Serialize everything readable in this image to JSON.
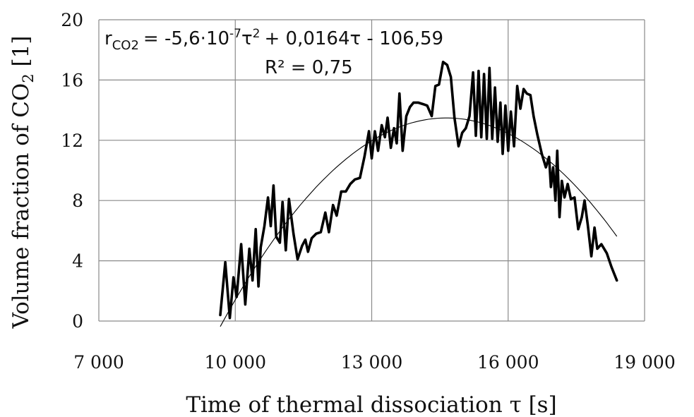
{
  "chart_data": {
    "type": "line",
    "xlabel": "Time of thermal dissociation τ [s]",
    "ylabel": "Volume fraction of CO",
    "ylabel_sub": "2",
    "ylabel_tail": " [1]",
    "xlim": [
      7000,
      19000
    ],
    "ylim": [
      0,
      20
    ],
    "x_ticks": [
      7000,
      10000,
      13000,
      16000,
      19000
    ],
    "x_tick_labels": [
      "7 000",
      "10 000",
      "13 000",
      "16 000",
      "19 000"
    ],
    "y_ticks": [
      0,
      4,
      8,
      12,
      16,
      20
    ],
    "y_tick_labels": [
      "0",
      "4",
      "8",
      "12",
      "16",
      "20"
    ],
    "grid": true,
    "annotation": {
      "eq_r": "r",
      "eq_sub": "CO2",
      "eq_a": "= -5,6·10",
      "eq_exp": "-7",
      "eq_b": "τ",
      "eq_sq": "2",
      "eq_c": "+ 0,0164τ - 106,59",
      "r2": "R² = 0,75"
    },
    "series": [
      {
        "style": "measured",
        "color": "#000000",
        "points": [
          [
            9670,
            0.4
          ],
          [
            9780,
            3.9
          ],
          [
            9880,
            0.2
          ],
          [
            9960,
            2.9
          ],
          [
            10030,
            1.6
          ],
          [
            10130,
            5.1
          ],
          [
            10220,
            1.1
          ],
          [
            10310,
            4.8
          ],
          [
            10380,
            2.7
          ],
          [
            10450,
            6.1
          ],
          [
            10510,
            2.3
          ],
          [
            10560,
            4.9
          ],
          [
            10640,
            6.3
          ],
          [
            10720,
            8.2
          ],
          [
            10780,
            6.3
          ],
          [
            10840,
            9.0
          ],
          [
            10900,
            5.6
          ],
          [
            10980,
            5.2
          ],
          [
            11040,
            7.9
          ],
          [
            11110,
            4.7
          ],
          [
            11180,
            8.1
          ],
          [
            11280,
            5.8
          ],
          [
            11370,
            4.1
          ],
          [
            11470,
            5.0
          ],
          [
            11540,
            5.4
          ],
          [
            11600,
            4.6
          ],
          [
            11680,
            5.5
          ],
          [
            11780,
            5.8
          ],
          [
            11880,
            5.9
          ],
          [
            11980,
            7.2
          ],
          [
            12060,
            5.9
          ],
          [
            12150,
            7.7
          ],
          [
            12230,
            7.0
          ],
          [
            12330,
            8.6
          ],
          [
            12430,
            8.6
          ],
          [
            12530,
            9.1
          ],
          [
            12630,
            9.4
          ],
          [
            12740,
            9.5
          ],
          [
            12840,
            10.9
          ],
          [
            12940,
            12.6
          ],
          [
            13000,
            10.8
          ],
          [
            13070,
            12.6
          ],
          [
            13140,
            11.3
          ],
          [
            13220,
            13.0
          ],
          [
            13290,
            12.2
          ],
          [
            13350,
            13.5
          ],
          [
            13420,
            11.5
          ],
          [
            13490,
            12.8
          ],
          [
            13550,
            11.8
          ],
          [
            13610,
            15.1
          ],
          [
            13680,
            11.3
          ],
          [
            13760,
            13.6
          ],
          [
            13840,
            14.2
          ],
          [
            13920,
            14.5
          ],
          [
            14020,
            14.5
          ],
          [
            14130,
            14.4
          ],
          [
            14220,
            14.3
          ],
          [
            14320,
            13.6
          ],
          [
            14400,
            15.6
          ],
          [
            14480,
            15.7
          ],
          [
            14570,
            17.2
          ],
          [
            14660,
            17.0
          ],
          [
            14740,
            16.2
          ],
          [
            14820,
            13.5
          ],
          [
            14910,
            11.6
          ],
          [
            14990,
            12.5
          ],
          [
            15070,
            12.8
          ],
          [
            15150,
            13.6
          ],
          [
            15230,
            16.5
          ],
          [
            15290,
            12.3
          ],
          [
            15350,
            16.6
          ],
          [
            15410,
            12.2
          ],
          [
            15470,
            16.4
          ],
          [
            15530,
            12.1
          ],
          [
            15590,
            16.8
          ],
          [
            15650,
            12.1
          ],
          [
            15710,
            15.5
          ],
          [
            15770,
            11.9
          ],
          [
            15830,
            14.5
          ],
          [
            15880,
            11.1
          ],
          [
            15940,
            14.3
          ],
          [
            16000,
            11.3
          ],
          [
            16060,
            13.9
          ],
          [
            16130,
            11.6
          ],
          [
            16200,
            15.6
          ],
          [
            16270,
            14.1
          ],
          [
            16340,
            15.4
          ],
          [
            16410,
            15.1
          ],
          [
            16490,
            15.0
          ],
          [
            16560,
            13.6
          ],
          [
            16640,
            12.4
          ],
          [
            16740,
            11.1
          ],
          [
            16830,
            10.2
          ],
          [
            16900,
            10.9
          ],
          [
            16940,
            8.9
          ],
          [
            16990,
            10.2
          ],
          [
            17040,
            8.0
          ],
          [
            17080,
            11.3
          ],
          [
            17130,
            6.9
          ],
          [
            17180,
            9.3
          ],
          [
            17240,
            8.2
          ],
          [
            17310,
            9.1
          ],
          [
            17380,
            8.1
          ],
          [
            17460,
            8.2
          ],
          [
            17540,
            6.1
          ],
          [
            17620,
            6.9
          ],
          [
            17680,
            8.0
          ],
          [
            17750,
            6.4
          ],
          [
            17830,
            4.3
          ],
          [
            17900,
            6.2
          ],
          [
            17960,
            4.8
          ],
          [
            18050,
            5.1
          ],
          [
            18170,
            4.5
          ],
          [
            18270,
            3.6
          ],
          [
            18390,
            2.7
          ]
        ]
      },
      {
        "style": "trend",
        "color": "#000000",
        "fit": {
          "a": -5.6e-07,
          "b": 0.0164,
          "c": -106.59
        },
        "x_range": [
          9670,
          18390
        ]
      }
    ]
  }
}
